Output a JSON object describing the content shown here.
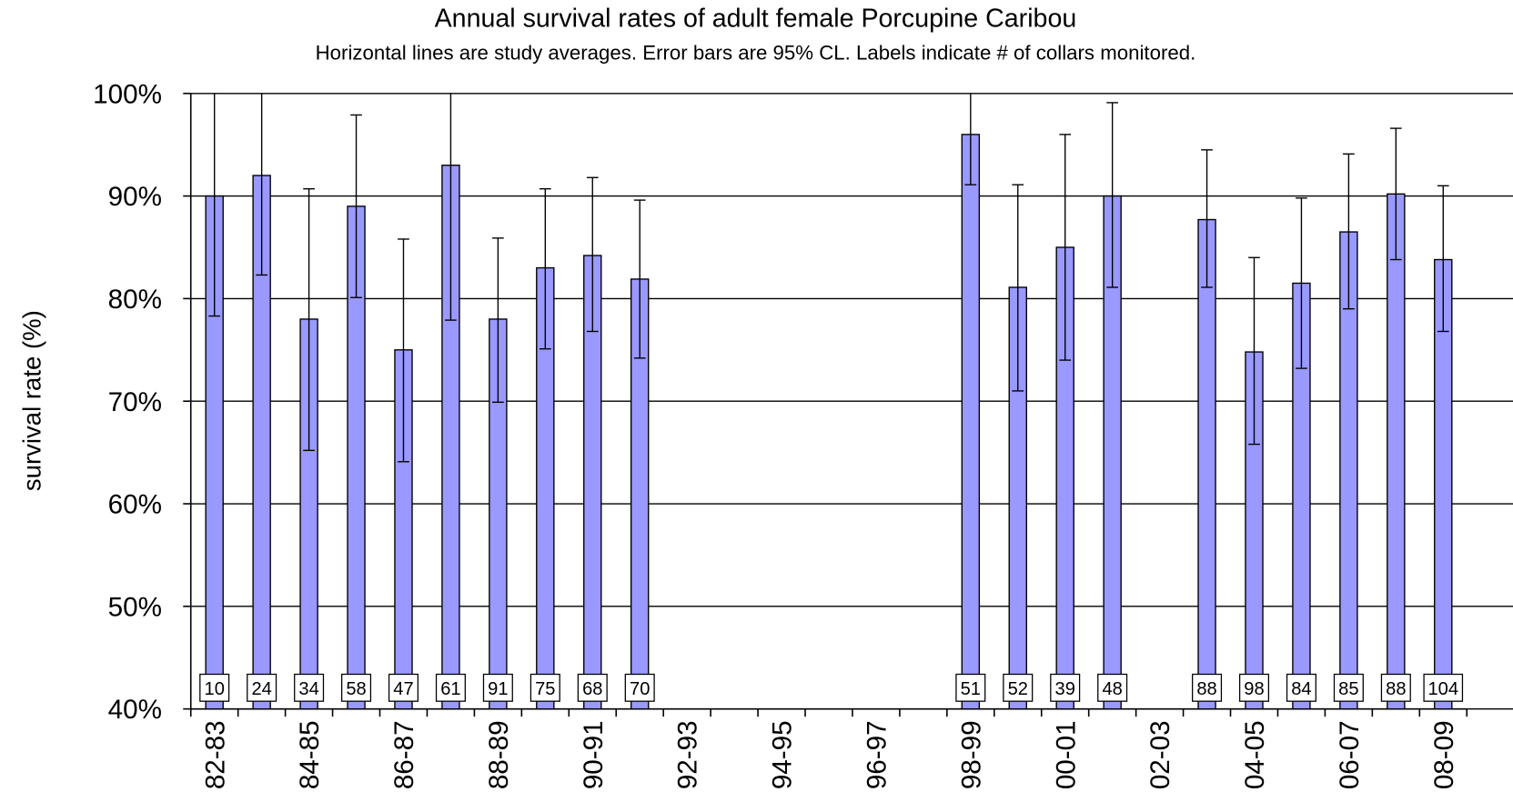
{
  "chart_data": {
    "type": "bar",
    "title": "Annual survival rates of adult female Porcupine Caribou",
    "subtitle": "Horizontal lines are study averages.  Error bars are 95% CL.  Labels indicate # of collars monitored.",
    "y_label": "survival rate (%)",
    "categories": [
      "82-83",
      null,
      "84-85",
      null,
      "86-87",
      null,
      "88-89",
      null,
      "90-91",
      null,
      "92-93",
      null,
      "94-95",
      null,
      "96-97",
      null,
      "98-99",
      null,
      "00-01",
      null,
      "02-03",
      null,
      "04-05",
      null,
      "06-07",
      null,
      "08-09"
    ],
    "values": [
      90,
      92,
      78,
      89,
      75,
      93,
      78,
      83,
      84.2,
      81.9,
      null,
      null,
      null,
      null,
      null,
      null,
      96,
      81.1,
      85,
      90,
      null,
      87.7,
      74.8,
      81.5,
      86.5,
      90.2,
      83.8
    ],
    "ci_low": [
      78.3,
      82.3,
      65.2,
      80.1,
      64.1,
      77.9,
      69.9,
      75.1,
      76.8,
      74.2,
      null,
      null,
      null,
      null,
      null,
      null,
      91.1,
      71,
      74,
      81.1,
      null,
      81.1,
      65.8,
      73.2,
      79,
      83.8,
      76.8
    ],
    "ci_high": [
      100,
      100,
      90.7,
      97.9,
      85.8,
      100,
      85.9,
      90.7,
      91.8,
      89.6,
      null,
      null,
      null,
      null,
      null,
      null,
      100,
      91.1,
      96,
      99.1,
      null,
      94.5,
      84,
      89.8,
      94.1,
      96.6,
      91
    ],
    "collars": [
      10,
      24,
      34,
      58,
      47,
      61,
      91,
      75,
      68,
      70,
      null,
      null,
      null,
      null,
      null,
      null,
      51,
      52,
      39,
      48,
      null,
      88,
      98,
      84,
      85,
      88,
      104
    ],
    "color": "#9999ff",
    "ylim": [
      40,
      100
    ],
    "yticks": [
      {
        "value": 40,
        "label": "40%"
      },
      {
        "value": 50,
        "label": "50%"
      },
      {
        "value": 60,
        "label": "60%"
      },
      {
        "value": 70,
        "label": "70%"
      },
      {
        "value": 80,
        "label": "80%"
      },
      {
        "value": 90,
        "label": "90%"
      },
      {
        "value": 100,
        "label": "100%"
      }
    ],
    "grid": true
  }
}
